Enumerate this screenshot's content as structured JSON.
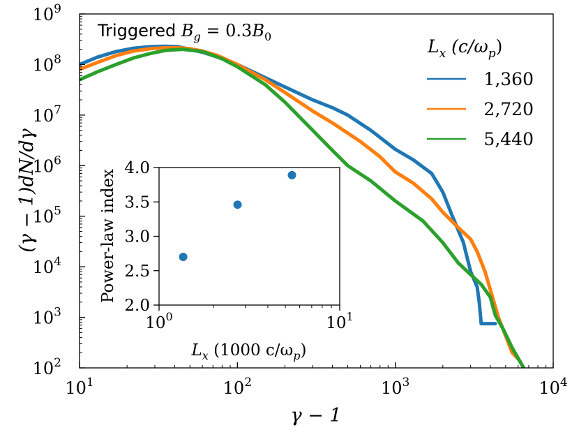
{
  "chart_data": {
    "type": "line",
    "scale": {
      "x": "log",
      "y": "log"
    },
    "xlim": [
      10,
      10000
    ],
    "ylim": [
      100,
      1000000000
    ],
    "x_ticks": [
      {
        "value": 10,
        "base": "10",
        "exp": "1"
      },
      {
        "value": 100,
        "base": "10",
        "exp": "2"
      },
      {
        "value": 1000,
        "base": "10",
        "exp": "3"
      },
      {
        "value": 10000,
        "base": "10",
        "exp": "4"
      }
    ],
    "y_ticks": [
      {
        "value": 100,
        "base": "10",
        "exp": "2"
      },
      {
        "value": 1000,
        "base": "10",
        "exp": "3"
      },
      {
        "value": 10000,
        "base": "10",
        "exp": "4"
      },
      {
        "value": 100000,
        "base": "10",
        "exp": "5"
      },
      {
        "value": 1000000,
        "base": "10",
        "exp": "6"
      },
      {
        "value": 10000000,
        "base": "10",
        "exp": "7"
      },
      {
        "value": 100000000,
        "base": "10",
        "exp": "8"
      },
      {
        "value": 1000000000,
        "base": "10",
        "exp": "9"
      }
    ],
    "xlabel": "γ − 1",
    "ylabel": "(γ − 1)dN/dγ",
    "title": {
      "prefix": "Triggered ",
      "var": "B",
      "sub": "g",
      "mid": " = 0.3",
      "var2": "B",
      "sub2": "0"
    },
    "legend": {
      "title": {
        "var": "L",
        "sub": "x",
        "unit": " (c/ω",
        "unit_sub": "p",
        "unit_close": ")"
      },
      "position": "top-right"
    },
    "series": [
      {
        "name": "1,360",
        "color": "#1f77b4",
        "x": [
          10,
          13,
          17,
          22,
          28,
          35,
          42,
          50,
          60,
          75,
          100,
          150,
          200,
          300,
          400,
          500,
          700,
          1000,
          1300,
          1700,
          2000,
          2300,
          2700,
          3000,
          3200,
          3300,
          3400,
          3500,
          4000,
          4300
        ],
        "y": [
          100000000,
          140000000,
          180000000,
          210000000,
          225000000,
          230000000,
          225000000,
          200000000,
          175000000,
          140000000,
          100000000,
          55000000,
          36000000,
          20000000,
          14000000,
          10000000,
          5000000,
          2100000,
          1300000,
          700000,
          300000,
          100000,
          30000,
          8000,
          5000,
          4000,
          2000,
          750,
          750,
          750
        ]
      },
      {
        "name": "2,720",
        "color": "#ff7f0e",
        "x": [
          10,
          13,
          17,
          22,
          28,
          35,
          42,
          50,
          60,
          75,
          100,
          150,
          200,
          300,
          400,
          600,
          800,
          1000,
          1300,
          1700,
          2000,
          2500,
          3000,
          3300,
          3700,
          4500,
          5500,
          6000
        ],
        "y": [
          80000000,
          110000000,
          150000000,
          185000000,
          205000000,
          215000000,
          215000000,
          205000000,
          185000000,
          150000000,
          100000000,
          50000000,
          28000000,
          12000000,
          7000000,
          3000000,
          1500000,
          750000,
          450000,
          220000,
          120000,
          60000,
          35000,
          20000,
          8000,
          1000,
          200,
          150
        ]
      },
      {
        "name": "5,440",
        "color": "#2ca02c",
        "x": [
          10,
          13,
          17,
          22,
          28,
          35,
          45,
          60,
          80,
          100,
          150,
          200,
          300,
          400,
          500,
          700,
          1000,
          1500,
          2000,
          2500,
          3000,
          3500,
          4000,
          4300,
          4800,
          5500,
          6500
        ],
        "y": [
          50000000,
          72000000,
          100000000,
          135000000,
          165000000,
          190000000,
          200000000,
          180000000,
          130000000,
          90000000,
          40000000,
          18000000,
          5000000,
          2000000,
          1000000,
          500000,
          200000,
          80000,
          30000,
          12000,
          7000,
          4500,
          2500,
          1100,
          600,
          250,
          100
        ]
      }
    ],
    "inset": {
      "type": "scatter",
      "xscale": "log",
      "xlim": [
        1,
        10
      ],
      "ylim": [
        2.0,
        4.0
      ],
      "ylabel": "Power-law index",
      "xlabel": {
        "var": "L",
        "sub": "x",
        "unit": " (1000 c/ω",
        "unit_sub": "p",
        "unit_close": ")"
      },
      "x_ticks": [
        {
          "value": 1,
          "base": "10",
          "exp": "0"
        },
        {
          "value": 10,
          "base": "10",
          "exp": "1"
        }
      ],
      "y_ticks": [
        "2.0",
        "2.5",
        "3.0",
        "3.5",
        "4.0"
      ],
      "color": "#1f77b4",
      "points": [
        {
          "x": 1.36,
          "y": 2.7
        },
        {
          "x": 2.72,
          "y": 3.46
        },
        {
          "x": 5.44,
          "y": 3.89
        }
      ]
    }
  }
}
